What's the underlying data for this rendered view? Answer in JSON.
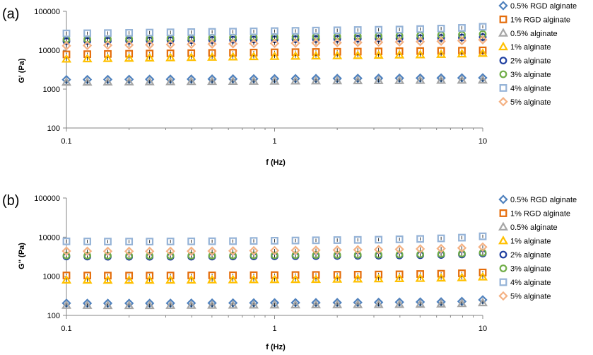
{
  "colors": {
    "0.5% RGD alginate": "#4f81bd",
    "1% RGD alginate": "#e46c0a",
    "0.5% alginate": "#a6a6a6",
    "1% alginate": "#ffc000",
    "2% alginate": "#1f3fa0",
    "3% alginate": "#70ad47",
    "4% alginate": "#95b3d7",
    "5% alginate": "#f4b183"
  },
  "chart_data": [
    {
      "type": "scatter",
      "panel_label": "(a)",
      "xlabel": "f (Hz)",
      "ylabel": "G' (Pa)",
      "xscale": "log",
      "yscale": "log",
      "xlim": [
        0.1,
        10
      ],
      "ylim": [
        100,
        100000
      ],
      "xticks": [
        "0.1",
        "1",
        "10"
      ],
      "yticks": [
        "100",
        "1000",
        "10000",
        "100000"
      ],
      "grid": false,
      "legend_position": "right",
      "x": [
        0.1,
        0.126,
        0.158,
        0.2,
        0.251,
        0.316,
        0.398,
        0.501,
        0.631,
        0.794,
        1.0,
        1.26,
        1.58,
        2.0,
        2.51,
        3.16,
        3.98,
        5.01,
        6.31,
        7.94,
        10.0
      ],
      "series": [
        {
          "name": "0.5% RGD alginate",
          "marker": "diamond",
          "values": [
            1750,
            1760,
            1770,
            1780,
            1790,
            1800,
            1810,
            1820,
            1830,
            1840,
            1850,
            1860,
            1870,
            1880,
            1890,
            1900,
            1910,
            1920,
            1930,
            1940,
            1950
          ]
        },
        {
          "name": "1% RGD alginate",
          "marker": "square",
          "values": [
            7800,
            7900,
            8000,
            8100,
            8200,
            8300,
            8400,
            8500,
            8600,
            8700,
            8800,
            8900,
            9000,
            9100,
            9200,
            9300,
            9400,
            9500,
            9600,
            9700,
            9900
          ]
        },
        {
          "name": "0.5% alginate",
          "marker": "triangle",
          "values": [
            1500,
            1510,
            1520,
            1530,
            1540,
            1550,
            1560,
            1570,
            1580,
            1590,
            1600,
            1610,
            1620,
            1630,
            1640,
            1650,
            1660,
            1670,
            1680,
            1690,
            1700
          ]
        },
        {
          "name": "1% alginate",
          "marker": "triangle",
          "values": [
            5900,
            6000,
            6100,
            6200,
            6300,
            6400,
            6500,
            6600,
            6700,
            6800,
            6900,
            7000,
            7100,
            7200,
            7300,
            7400,
            7500,
            7600,
            7800,
            8000,
            8300
          ]
        },
        {
          "name": "2% alginate",
          "marker": "circle",
          "values": [
            17000,
            17200,
            17400,
            17600,
            17800,
            18000,
            18200,
            18400,
            18600,
            18800,
            19000,
            19200,
            19400,
            19600,
            19800,
            20000,
            20200,
            20500,
            20800,
            21200,
            21800
          ]
        },
        {
          "name": "3% alginate",
          "marker": "circle",
          "values": [
            19000,
            19200,
            19400,
            19700,
            20000,
            20300,
            20600,
            20900,
            21200,
            21500,
            21800,
            22100,
            22400,
            22700,
            23000,
            23300,
            23600,
            24000,
            24500,
            25000,
            26000
          ]
        },
        {
          "name": "4% alginate",
          "marker": "square",
          "values": [
            27000,
            27300,
            27600,
            28000,
            28400,
            28800,
            29200,
            29600,
            30000,
            30500,
            31000,
            31500,
            32000,
            32500,
            33000,
            33500,
            34000,
            35000,
            36000,
            37500,
            40000
          ]
        },
        {
          "name": "5% alginate",
          "marker": "diamond",
          "values": [
            13000,
            13200,
            13400,
            13600,
            13800,
            14000,
            14200,
            14400,
            14600,
            14800,
            15000,
            15200,
            15400,
            15600,
            15800,
            16000,
            16300,
            16600,
            17000,
            17500,
            18500
          ]
        }
      ]
    },
    {
      "type": "scatter",
      "panel_label": "(b)",
      "xlabel": "f (Hz)",
      "ylabel": "G'' (Pa)",
      "xscale": "log",
      "yscale": "log",
      "xlim": [
        0.1,
        10
      ],
      "ylim": [
        100,
        100000
      ],
      "xticks": [
        "0.1",
        "1",
        "10"
      ],
      "yticks": [
        "100",
        "1000",
        "10000",
        "100000"
      ],
      "grid": false,
      "legend_position": "right",
      "x": [
        0.1,
        0.126,
        0.158,
        0.2,
        0.251,
        0.316,
        0.398,
        0.501,
        0.631,
        0.794,
        1.0,
        1.26,
        1.58,
        2.0,
        2.51,
        3.16,
        3.98,
        5.01,
        6.31,
        7.94,
        10.0
      ],
      "series": [
        {
          "name": "0.5% RGD alginate",
          "marker": "diamond",
          "values": [
            205,
            204,
            204,
            204,
            204,
            205,
            206,
            207,
            208,
            209,
            210,
            211,
            212,
            213,
            214,
            216,
            218,
            220,
            222,
            228,
            250
          ]
        },
        {
          "name": "1% RGD alginate",
          "marker": "square",
          "values": [
            1050,
            1045,
            1040,
            1040,
            1040,
            1045,
            1050,
            1055,
            1060,
            1065,
            1070,
            1075,
            1080,
            1090,
            1100,
            1110,
            1120,
            1140,
            1160,
            1190,
            1250
          ]
        },
        {
          "name": "0.5% alginate",
          "marker": "triangle",
          "values": [
            180,
            179,
            178,
            178,
            178,
            179,
            180,
            181,
            182,
            183,
            184,
            185,
            186,
            187,
            188,
            189,
            190,
            192,
            195,
            200,
            210
          ]
        },
        {
          "name": "1% alginate",
          "marker": "triangle",
          "values": [
            800,
            795,
            790,
            790,
            790,
            795,
            800,
            805,
            810,
            815,
            820,
            825,
            830,
            840,
            850,
            860,
            870,
            880,
            900,
            920,
            960
          ]
        },
        {
          "name": "2% alginate",
          "marker": "circle",
          "values": [
            3200,
            3180,
            3160,
            3150,
            3150,
            3160,
            3170,
            3180,
            3200,
            3220,
            3240,
            3260,
            3280,
            3300,
            3330,
            3360,
            3400,
            3450,
            3500,
            3600,
            3800
          ]
        },
        {
          "name": "3% alginate",
          "marker": "circle",
          "values": [
            3400,
            3380,
            3360,
            3350,
            3350,
            3360,
            3370,
            3380,
            3400,
            3420,
            3440,
            3460,
            3480,
            3500,
            3530,
            3560,
            3600,
            3650,
            3700,
            3800,
            4000
          ]
        },
        {
          "name": "4% alginate",
          "marker": "square",
          "values": [
            7800,
            7750,
            7700,
            7700,
            7700,
            7750,
            7800,
            7850,
            7900,
            8000,
            8100,
            8200,
            8300,
            8400,
            8500,
            8600,
            8800,
            9000,
            9300,
            9700,
            10500
          ]
        },
        {
          "name": "5% alginate",
          "marker": "diamond",
          "values": [
            4400,
            4380,
            4360,
            4350,
            4350,
            4360,
            4380,
            4400,
            4450,
            4500,
            4550,
            4600,
            4650,
            4700,
            4760,
            4820,
            4900,
            5000,
            5100,
            5300,
            5600
          ]
        }
      ]
    }
  ]
}
